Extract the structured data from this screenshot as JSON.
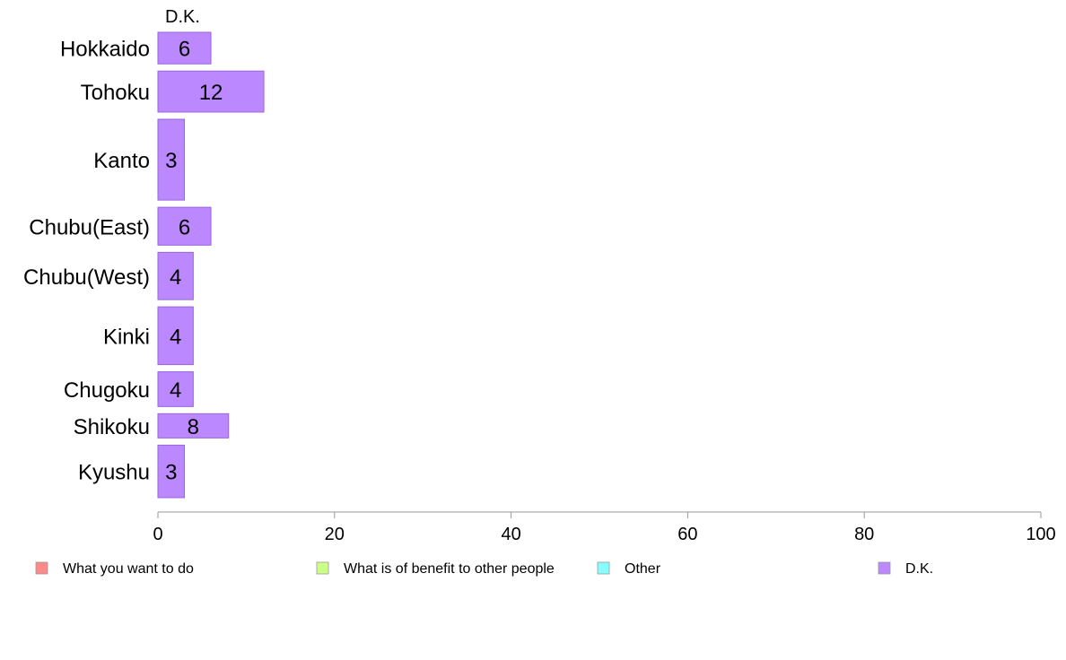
{
  "chart_data": {
    "type": "bar",
    "orientation": "horizontal",
    "column_title": "D.K.",
    "categories": [
      "Hokkaido",
      "Tohoku",
      "Kanto",
      "Chubu(East)",
      "Chubu(West)",
      "Kinki",
      "Chugoku",
      "Shikoku",
      "Kyushu"
    ],
    "category_weights": [
      3.7,
      4.6,
      8.4,
      4.3,
      5.2,
      6.2,
      4.0,
      3.0,
      5.7
    ],
    "series": [
      {
        "name": "D.K.",
        "color": "#bb88ff",
        "values": [
          6,
          12,
          3,
          6,
          4,
          4,
          4,
          8,
          3
        ]
      }
    ],
    "xlim": [
      0,
      100
    ],
    "xticks": [
      0,
      20,
      40,
      60,
      80,
      100
    ],
    "grid": false,
    "legend": {
      "placement": "bottom",
      "entries": [
        {
          "label": "What you want to do",
          "color": "#ff8888"
        },
        {
          "label": "What is of benefit to other people",
          "color": "#ccff88"
        },
        {
          "label": "Other",
          "color": "#88ffff"
        },
        {
          "label": "D.K.",
          "color": "#bb88ff"
        }
      ]
    }
  }
}
